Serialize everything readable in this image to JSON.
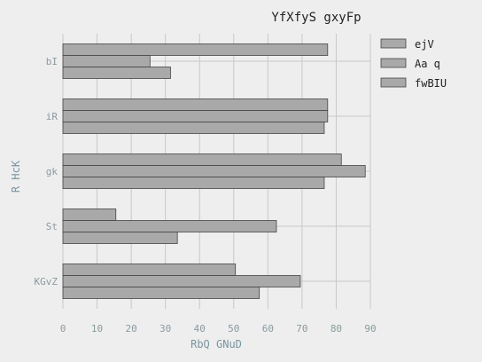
{
  "chart_data": {
    "type": "bar",
    "orientation": "horizontal",
    "title": "YfXfyS gxyFp",
    "xlabel": "RbQ GNuD",
    "ylabel": "R HcK",
    "categories": [
      "KGvZ",
      "St",
      "gk",
      "iR",
      "bI"
    ],
    "series": [
      {
        "name": "ejV",
        "values": [
          50.5,
          15.5,
          81.5,
          77.5,
          77.5
        ]
      },
      {
        "name": "Aa q",
        "values": [
          69.5,
          62.5,
          88.5,
          77.5,
          25.5
        ]
      },
      {
        "name": "fwBIU",
        "values": [
          57.5,
          33.5,
          76.5,
          76.5,
          31.5
        ]
      }
    ],
    "xlim": [
      0,
      90
    ],
    "xticks": [
      "0",
      "10",
      "20",
      "30",
      "40",
      "50",
      "60",
      "70",
      "80",
      "90"
    ],
    "grid": true,
    "legend_position": "top-right",
    "colors": {
      "background": "#eeeeee",
      "bar_fill": "#a9a9a9",
      "bar_edge": "#444444",
      "grid": "#c8c8c8"
    }
  }
}
